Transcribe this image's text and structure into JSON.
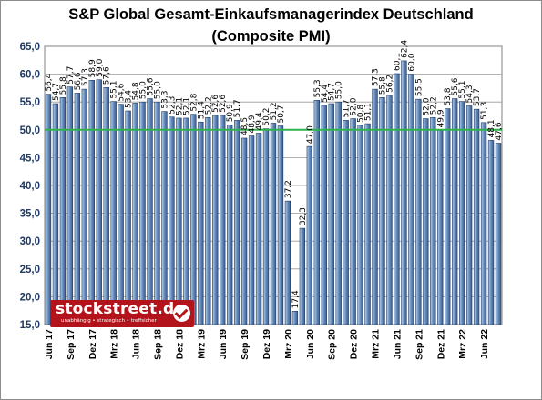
{
  "chart_data": {
    "type": "bar",
    "title": "S&P Global Gesamt-Einkaufsmanagerindex Deutschland",
    "subtitle": "(Composite PMI)",
    "ylim": [
      15,
      65
    ],
    "yticks": [
      "15,0",
      "20,0",
      "25,0",
      "30,0",
      "35,0",
      "40,0",
      "45,0",
      "50,0",
      "55,0",
      "60,0",
      "65,0"
    ],
    "grid": true,
    "reference_line": 50,
    "categories": [
      "Jun 17",
      "Jul 17",
      "Aug 17",
      "Sep 17",
      "Okt 17",
      "Nov 17",
      "Dez 17",
      "Jan 18",
      "Feb 18",
      "Mrz 18",
      "Apr 18",
      "Mai 18",
      "Jun 18",
      "Jul 18",
      "Aug 18",
      "Sep 18",
      "Okt 18",
      "Nov 18",
      "Dez 18",
      "Jan 19",
      "Feb 19",
      "Mrz 19",
      "Apr 19",
      "Mai 19",
      "Jun 19",
      "Jul 19",
      "Aug 19",
      "Sep 19",
      "Okt 19",
      "Nov 19",
      "Dez 19",
      "Jan 20",
      "Feb 20",
      "Mrz 20",
      "Apr 20",
      "Mai 20",
      "Jun 20",
      "Jul 20",
      "Aug 20",
      "Sep 20",
      "Okt 20",
      "Nov 20",
      "Dez 20",
      "Jan 21",
      "Feb 21",
      "Mrz 21",
      "Apr 21",
      "Mai 21",
      "Jun 21",
      "Jul 21",
      "Aug 21",
      "Sep 21",
      "Okt 21",
      "Nov 21",
      "Dez 21",
      "Jan 22",
      "Feb 22",
      "Mrz 22",
      "Apr 22",
      "Mai 22",
      "Jun 22",
      "Jul 22",
      "Aug 22"
    ],
    "x_labels_shown": [
      "Jun 17",
      "Sep 17",
      "Dez 17",
      "Mrz 18",
      "Jun 18",
      "Sep 18",
      "Dez 18",
      "Mrz 19",
      "Jun 19",
      "Sep 19",
      "Dez 19",
      "Mrz 20",
      "Jun 20",
      "Sep 20",
      "Dez 20",
      "Mrz 21",
      "Jun 21",
      "Sep 21",
      "Dez 21",
      "Mrz 22",
      "Jun 22"
    ],
    "values": [
      56.4,
      54.7,
      55.8,
      57.7,
      56.6,
      57.3,
      58.9,
      59.0,
      57.6,
      55.1,
      54.6,
      53.4,
      54.8,
      55.0,
      55.6,
      55.0,
      53.3,
      52.3,
      52.1,
      52.1,
      52.8,
      51.4,
      52.2,
      52.6,
      52.6,
      50.9,
      51.7,
      48.5,
      48.9,
      49.4,
      50.2,
      51.2,
      50.7,
      37.2,
      17.4,
      32.3,
      47.0,
      55.3,
      54.4,
      54.7,
      55.0,
      51.7,
      52.0,
      50.8,
      51.1,
      57.3,
      55.8,
      56.2,
      60.1,
      62.4,
      60.0,
      55.5,
      52.0,
      52.2,
      49.9,
      53.8,
      55.6,
      55.1,
      54.3,
      53.7,
      51.3,
      48.1,
      47.6
    ],
    "data_labels": [
      "56,4",
      "54,7",
      "55,8",
      "57,7",
      "56,6",
      "57,3",
      "58,9",
      "59,0",
      "57,6",
      "55,1",
      "54,6",
      "53,4",
      "54,8",
      "55,0",
      "55,6",
      "55,0",
      "53,3",
      "52,3",
      "52,1",
      "52,1",
      "52,8",
      "51,4",
      "52,2",
      "52,6",
      "52,6",
      "50,9",
      "51,7",
      "48,5",
      "48,9",
      "49,4",
      "50,2",
      "51,2",
      "50,7",
      "37,2",
      "17,4",
      "32,3",
      "47,0",
      "55,3",
      "54,4",
      "54,7",
      "55,0",
      "51,7",
      "52,0",
      "50,8",
      "51,1",
      "57,3",
      "55,8",
      "56,2",
      "60,1",
      "62,4",
      "60,0",
      "55,5",
      "52,0",
      "52,2",
      "49,9",
      "53,8",
      "55,6",
      "55,1",
      "54,3",
      "53,7",
      "51,3",
      "48,1",
      "47,6"
    ],
    "colors": {
      "bar_fill": "#5f86b8",
      "bar_fill_light": "#b8cfe8",
      "bar_stroke": "#1f3a63",
      "reference_line": "#2db34a",
      "grid": "#9a9a9a",
      "plot_bg": "#ffffff"
    }
  },
  "logo": {
    "name": "stockstreet.de",
    "tagline": "unabhängig • strategisch • treffsicher",
    "icon": "checkmark-icon",
    "color": "#b3141b"
  }
}
